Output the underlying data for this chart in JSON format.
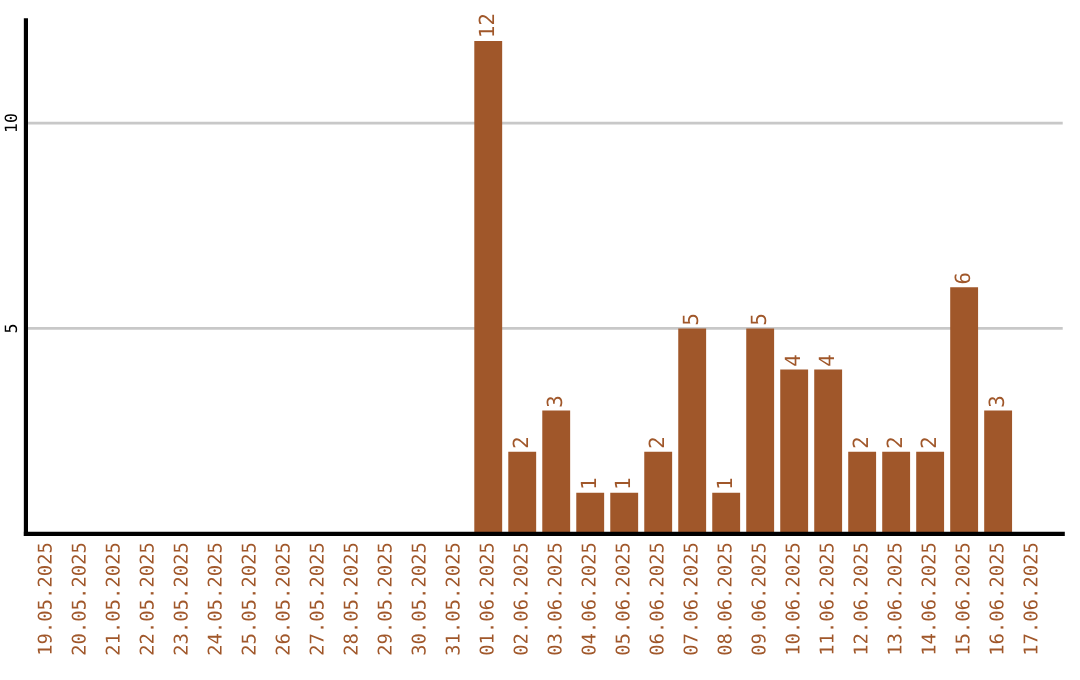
{
  "chart_data": {
    "type": "bar",
    "categories": [
      "19.05.2025",
      "20.05.2025",
      "21.05.2025",
      "22.05.2025",
      "23.05.2025",
      "24.05.2025",
      "25.05.2025",
      "26.05.2025",
      "27.05.2025",
      "28.05.2025",
      "29.05.2025",
      "30.05.2025",
      "31.05.2025",
      "01.06.2025",
      "02.06.2025",
      "03.06.2025",
      "04.06.2025",
      "05.06.2025",
      "06.06.2025",
      "07.06.2025",
      "08.06.2025",
      "09.06.2025",
      "10.06.2025",
      "11.06.2025",
      "12.06.2025",
      "13.06.2025",
      "14.06.2025",
      "15.06.2025",
      "16.06.2025",
      "17.06.2025"
    ],
    "values": [
      0,
      0,
      0,
      0,
      0,
      0,
      0,
      0,
      0,
      0,
      0,
      0,
      0,
      12,
      2,
      3,
      1,
      1,
      2,
      5,
      1,
      5,
      4,
      4,
      2,
      2,
      2,
      6,
      3,
      0
    ],
    "value_labels": [
      null,
      null,
      null,
      null,
      null,
      null,
      null,
      null,
      null,
      null,
      null,
      null,
      null,
      "12",
      "2",
      "3",
      "1",
      "1",
      "2",
      "5",
      "1",
      "5",
      "4",
      "4",
      "2",
      "2",
      "2",
      "6",
      "3",
      null
    ],
    "color": "#a0572a",
    "ylim": [
      0,
      12.5
    ],
    "yticks": [
      5,
      10
    ],
    "grid": "y",
    "legend": false
  }
}
